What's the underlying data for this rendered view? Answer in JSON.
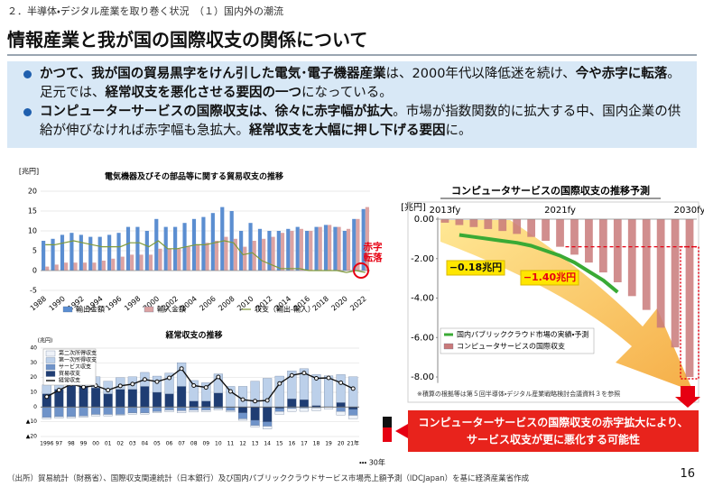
{
  "header": "２．半導体・デジタル産業を取り巻く状況　（１）国内外の潮流",
  "title": "情報産業と我が国の国際収支の関係について",
  "bullets": [
    [
      {
        "text": "かつて、我が国の貿易黒字をけん引した電気･電子機器産業",
        "bold": true
      },
      {
        "text": "は、2000年代以降低迷を続け、",
        "bold": false
      },
      {
        "text": "今や赤字に転落",
        "bold": true
      },
      {
        "text": "。足元では、",
        "bold": false
      },
      {
        "text": "経常収支を悪化させる要因の一つ",
        "bold": true
      },
      {
        "text": "になっている。",
        "bold": false
      }
    ],
    [
      {
        "text": "コンピューターサービスの国際収支は、徐々に赤字幅が拡大",
        "bold": true
      },
      {
        "text": "。市場が指数関数的に拡大する中、国内企業の供給が伸びなければ赤字幅も急拡大。",
        "bold": false
      },
      {
        "text": "経常収支を大幅に押し下げる要因",
        "bold": true
      },
      {
        "text": "に。",
        "bold": false
      }
    ]
  ],
  "footer": "（出所）貿易統計（財務省）、国際収支関連統計（日本銀行）及び国内パブリッククラウドサービス市場売上額予測（IDCJapan）を基に経済産業省作成",
  "page_number": "16",
  "chart_data": [
    {
      "type": "bar",
      "title": "電気機器及びその部品等に関する貿易収支の推移",
      "y_unit": "[兆円]",
      "categories": [
        "1988",
        null,
        "1990",
        null,
        "1992",
        null,
        "1994",
        null,
        "1996",
        null,
        "1998",
        null,
        "2000",
        null,
        "2002",
        null,
        "2004",
        null,
        "2006",
        null,
        "2008",
        null,
        "2010",
        null,
        "2012",
        null,
        "2014",
        null,
        "2016",
        null,
        "2018",
        null,
        "2020",
        null,
        "2022"
      ],
      "series": [
        {
          "name": "輸出金額",
          "color": "#5b8ed1",
          "kind": "bar",
          "values": [
            7.5,
            8,
            9,
            9.5,
            9,
            8.5,
            8.5,
            9,
            9.5,
            11,
            11,
            10,
            13,
            11,
            11,
            12,
            13,
            13.5,
            14.5,
            16,
            15,
            10,
            12,
            10.5,
            10,
            10,
            10.5,
            11,
            10,
            11,
            11.5,
            11,
            10,
            13,
            15.5
          ]
        },
        {
          "name": "輸入金額",
          "color": "#dca3a3",
          "kind": "bar",
          "values": [
            1,
            1.5,
            2,
            2,
            2,
            2,
            2.5,
            3,
            3.5,
            4,
            4,
            4,
            5.5,
            5.5,
            5.5,
            6,
            6.5,
            7,
            7.5,
            8.5,
            8,
            6,
            7.5,
            8,
            8.5,
            9.5,
            10,
            10.5,
            10,
            11,
            11.5,
            11,
            10.5,
            13,
            16
          ]
        },
        {
          "name": "収支（輸出-輸入）",
          "color": "#7f9a3a",
          "kind": "line",
          "values": [
            6.5,
            6.5,
            7,
            7.5,
            7,
            6.5,
            6,
            6,
            6,
            7,
            7,
            6,
            7.5,
            5.5,
            5.5,
            6,
            6.5,
            6.5,
            7,
            7.5,
            7,
            4,
            4.5,
            2.5,
            1.5,
            0.5,
            0.5,
            0.5,
            0,
            0,
            0,
            0,
            -0.5,
            0,
            -0.5
          ]
        }
      ],
      "ylim": [
        -5,
        20
      ],
      "yticks": [
        -5,
        0,
        5,
        10,
        15,
        20
      ],
      "grid": true,
      "annotation": "赤字転落"
    },
    {
      "type": "stacked_bar",
      "title": "経常収支の推移",
      "y_unit": "(兆円)",
      "categories": [
        "1996",
        "97",
        "98",
        "99",
        "00",
        "01",
        "02",
        "03",
        "04",
        "05",
        "06",
        "07",
        "08",
        "09",
        "10",
        "11",
        "12",
        "13",
        "14",
        "15",
        "16",
        "17",
        "18",
        "19",
        "20",
        "21年"
      ],
      "series": [
        {
          "name": "第二次所得収支",
          "color": "#eef2f8",
          "kind": "bar",
          "values": [
            -1,
            -1,
            -1,
            -1,
            -1,
            -1,
            -0.6,
            -0.9,
            -0.8,
            -0.8,
            -1.2,
            -1.4,
            -1.4,
            -1.2,
            -1.1,
            -1.1,
            -1,
            -1,
            -2,
            -2,
            -2,
            -2.2,
            -2,
            -1.4,
            -2.5,
            -2.4
          ]
        },
        {
          "name": "第一次所得収支",
          "color": "#bcd0ea",
          "kind": "bar",
          "values": [
            6,
            7,
            7,
            6.5,
            7.5,
            8.5,
            8,
            8.5,
            9.5,
            11,
            14,
            16,
            14,
            12.5,
            13,
            14,
            14,
            17.5,
            19.5,
            21,
            19,
            21,
            21,
            21,
            19,
            20.5
          ]
        },
        {
          "name": "サービス収支",
          "color": "#6f93c9",
          "kind": "bar",
          "values": [
            -7,
            -6.5,
            -6.5,
            -6,
            -5,
            -5,
            -5,
            -4,
            -4,
            -3,
            -2,
            -2.5,
            -2,
            -2,
            -1,
            -2,
            -4,
            -3.5,
            -3,
            -2,
            -1,
            -0.7,
            -0.5,
            0,
            -3,
            -4
          ]
        },
        {
          "name": "貿易収支",
          "color": "#1f3d73",
          "kind": "bar",
          "values": [
            9,
            12,
            16,
            14,
            13,
            9,
            12,
            12,
            14,
            10,
            9,
            14,
            4,
            4,
            9.5,
            -0.3,
            -4,
            -9,
            -10,
            -1,
            5.5,
            5,
            1,
            0.2,
            3,
            -1.6
          ]
        },
        {
          "name": "経常収支",
          "color": "#111111",
          "kind": "line",
          "values": [
            7,
            11.5,
            15.5,
            13.5,
            14.5,
            11.5,
            14.4,
            15.6,
            18.7,
            17.2,
            19.8,
            26.1,
            14.6,
            13.3,
            20.4,
            10.6,
            5,
            4,
            4.5,
            16,
            21.5,
            23.1,
            19.5,
            19.8,
            16.5,
            12.5
          ]
        }
      ],
      "ylim": [
        -20,
        40
      ],
      "yticks": [
        {
          "value": -20,
          "label": "▲20"
        },
        {
          "value": -10,
          "label": "▲10"
        },
        0,
        10,
        20,
        30,
        40
      ],
      "grid": true,
      "legend": "upper left",
      "annotation": "・・・ 30年"
    },
    {
      "type": "bar",
      "title": "コンピュータサービスの国際収支の推移予測",
      "y_unit": "[兆円]",
      "categories": [
        "2013fy",
        null,
        null,
        null,
        null,
        null,
        null,
        null,
        "2021fy",
        null,
        null,
        null,
        null,
        null,
        null,
        null,
        null,
        "2030fy"
      ],
      "series": [
        {
          "name": "国内パブリッククラウド市場の実績・予測",
          "color": "#3aaa35",
          "kind": "line",
          "values": [
            null,
            -0.8,
            -0.9,
            -1.0,
            -1.1,
            -1.2,
            -1.35,
            -1.6,
            -1.85,
            -2.2,
            -2.65,
            -3.1,
            -3.7,
            null,
            null,
            null,
            null,
            null
          ]
        },
        {
          "name": "コンピュータサービスの国際収支",
          "color": "#c97a7a",
          "kind": "bar",
          "values": [
            -0.18,
            -0.3,
            -0.4,
            -0.5,
            -0.6,
            -0.75,
            -0.9,
            -1.1,
            -1.4,
            -1.8,
            -2.2,
            -2.7,
            -3.2,
            -3.9,
            -4.6,
            -5.5,
            -6.5,
            -8.0
          ],
          "value_labels": [
            "−0.18兆円",
            null,
            null,
            null,
            null,
            null,
            null,
            null,
            "−1.40兆円",
            null,
            null,
            null,
            null,
            null,
            null,
            null,
            null,
            null
          ]
        }
      ],
      "ylim": [
        -8.3,
        0.1
      ],
      "yticks": [
        {
          "value": 0,
          "label": "0.00"
        },
        {
          "value": -2,
          "label": "-2.00"
        },
        {
          "value": -4,
          "label": "-4.00"
        },
        {
          "value": -6,
          "label": "-6.00"
        },
        {
          "value": -8,
          "label": "-8.00"
        }
      ],
      "grid": false,
      "legend": "lower left",
      "note": "※積算の根拠等は第５回半導体・デジタル産業戦略検討会議資料３を参照",
      "callout": [
        "コンピューターサービスの国際収支の赤字拡大により、",
        "サービス収支が更に悪化する可能性"
      ]
    }
  ]
}
